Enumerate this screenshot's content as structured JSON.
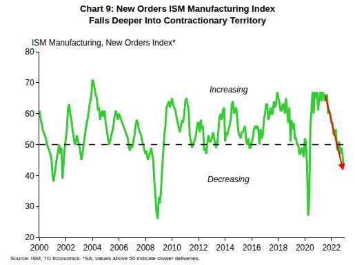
{
  "chart_data": {
    "type": "line",
    "title": "Chart 9: New Orders ISM Manufacturing Index\nFalls Deeper Into Contractionary Territory",
    "y_label": "ISM Manufacturing, New Orders Index*",
    "source": "Source: ISM, TD Economics. *SA; values above 50 indicate slower deliveries.",
    "annotations": [
      "Increasing",
      "Decreasing"
    ],
    "threshold": 50,
    "color": "#33cc33",
    "grid": false,
    "xlim": [
      2000,
      2023
    ],
    "ylim": [
      20,
      80
    ],
    "xticks": [
      2000,
      2002,
      2004,
      2006,
      2008,
      2010,
      2012,
      2014,
      2016,
      2018,
      2020,
      2022
    ],
    "yticks": [
      20,
      30,
      40,
      50,
      60,
      70,
      80
    ],
    "x": [
      2000,
      2000.08,
      2000.17,
      2000.25,
      2000.33,
      2000.42,
      2000.5,
      2000.58,
      2000.67,
      2000.75,
      2000.83,
      2000.92,
      2001,
      2001.08,
      2001.17,
      2001.25,
      2001.33,
      2001.42,
      2001.5,
      2001.58,
      2001.67,
      2001.75,
      2001.83,
      2001.92,
      2002,
      2002.08,
      2002.17,
      2002.25,
      2002.33,
      2002.42,
      2002.5,
      2002.58,
      2002.67,
      2002.75,
      2002.83,
      2002.92,
      2003,
      2003.08,
      2003.17,
      2003.25,
      2003.33,
      2003.42,
      2003.5,
      2003.58,
      2003.67,
      2003.75,
      2003.83,
      2003.92,
      2004,
      2004.08,
      2004.17,
      2004.25,
      2004.33,
      2004.42,
      2004.5,
      2004.58,
      2004.67,
      2004.75,
      2004.83,
      2004.92,
      2005,
      2005.08,
      2005.17,
      2005.25,
      2005.33,
      2005.42,
      2005.5,
      2005.58,
      2005.67,
      2005.75,
      2005.83,
      2005.92,
      2006,
      2006.08,
      2006.17,
      2006.25,
      2006.33,
      2006.42,
      2006.5,
      2006.58,
      2006.67,
      2006.75,
      2006.83,
      2006.92,
      2007,
      2007.08,
      2007.17,
      2007.25,
      2007.33,
      2007.42,
      2007.5,
      2007.58,
      2007.67,
      2007.75,
      2007.83,
      2007.92,
      2008,
      2008.08,
      2008.17,
      2008.25,
      2008.33,
      2008.42,
      2008.5,
      2008.58,
      2008.67,
      2008.75,
      2008.83,
      2008.92,
      2009,
      2009.08,
      2009.17,
      2009.25,
      2009.33,
      2009.42,
      2009.5,
      2009.58,
      2009.67,
      2009.75,
      2009.83,
      2009.92,
      2010,
      2010.08,
      2010.17,
      2010.25,
      2010.33,
      2010.42,
      2010.5,
      2010.58,
      2010.67,
      2010.75,
      2010.83,
      2010.92,
      2011,
      2011.08,
      2011.17,
      2011.25,
      2011.33,
      2011.42,
      2011.5,
      2011.58,
      2011.67,
      2011.75,
      2011.83,
      2011.92,
      2012,
      2012.08,
      2012.17,
      2012.25,
      2012.33,
      2012.42,
      2012.5,
      2012.58,
      2012.67,
      2012.75,
      2012.83,
      2012.92,
      2013,
      2013.08,
      2013.17,
      2013.25,
      2013.33,
      2013.42,
      2013.5,
      2013.58,
      2013.67,
      2013.75,
      2013.83,
      2013.92,
      2014,
      2014.08,
      2014.17,
      2014.25,
      2014.33,
      2014.42,
      2014.5,
      2014.58,
      2014.67,
      2014.75,
      2014.83,
      2014.92,
      2015,
      2015.08,
      2015.17,
      2015.25,
      2015.33,
      2015.42,
      2015.5,
      2015.58,
      2015.67,
      2015.75,
      2015.83,
      2015.92,
      2016,
      2016.08,
      2016.17,
      2016.25,
      2016.33,
      2016.42,
      2016.5,
      2016.58,
      2016.67,
      2016.75,
      2016.83,
      2016.92,
      2017,
      2017.08,
      2017.17,
      2017.25,
      2017.33,
      2017.42,
      2017.5,
      2017.58,
      2017.67,
      2017.75,
      2017.83,
      2017.92,
      2018,
      2018.08,
      2018.17,
      2018.25,
      2018.33,
      2018.42,
      2018.5,
      2018.58,
      2018.67,
      2018.75,
      2018.83,
      2018.92,
      2019,
      2019.08,
      2019.17,
      2019.25,
      2019.33,
      2019.42,
      2019.5,
      2019.58,
      2019.67,
      2019.75,
      2019.83,
      2019.92,
      2020,
      2020.08,
      2020.17,
      2020.25,
      2020.33,
      2020.42,
      2020.5,
      2020.58,
      2020.67,
      2020.75,
      2020.83,
      2020.92,
      2021,
      2021.08,
      2021.17,
      2021.25,
      2021.33,
      2021.42,
      2021.5,
      2021.58,
      2021.67,
      2021.75,
      2021.83,
      2021.92,
      2022,
      2022.08,
      2022.17,
      2022.25,
      2022.33,
      2022.42,
      2022.5,
      2022.58,
      2022.67,
      2022.75,
      2022.83,
      2022.92
    ],
    "values": [
      61,
      59,
      57,
      55,
      54,
      53,
      52,
      50,
      49,
      48,
      47,
      45,
      40,
      38,
      41,
      44,
      46,
      48,
      50,
      47,
      49,
      39,
      45,
      49,
      52,
      55,
      62,
      63,
      60,
      58,
      55,
      52,
      50,
      51,
      53,
      51,
      50,
      48,
      45,
      47,
      50,
      52,
      55,
      57,
      59,
      62,
      64,
      66,
      71,
      70,
      68,
      66,
      65,
      61,
      62,
      58,
      60,
      61,
      59,
      61,
      57,
      55,
      52,
      50,
      51,
      53,
      55,
      56,
      59,
      61,
      60,
      58,
      60,
      59,
      58,
      57,
      56,
      55,
      54,
      53,
      52,
      49,
      48,
      50,
      49,
      51,
      53,
      56,
      58,
      57,
      55,
      54,
      53,
      51,
      50,
      48,
      47,
      48,
      45,
      46,
      47,
      49,
      47,
      45,
      38,
      32,
      28,
      26,
      33,
      31,
      35,
      42,
      48,
      53,
      56,
      62,
      63,
      64,
      62,
      64,
      65,
      63,
      62,
      61,
      59,
      57,
      55,
      54,
      56,
      58,
      57,
      60,
      64,
      65,
      63,
      61,
      53,
      51,
      49,
      50,
      51,
      52,
      54,
      57,
      57,
      54,
      58,
      55,
      56,
      48,
      49,
      47,
      51,
      53,
      51,
      51,
      52,
      54,
      52,
      50,
      49,
      51,
      55,
      59,
      60,
      58,
      61,
      62,
      51,
      54,
      53,
      55,
      56,
      58,
      63,
      64,
      60,
      61,
      62,
      58,
      54,
      53,
      52,
      54,
      54,
      55,
      56,
      51,
      50,
      52,
      49,
      49,
      51,
      52,
      55,
      56,
      55,
      56,
      55,
      50,
      55,
      52,
      53,
      58,
      60,
      63,
      63,
      58,
      59,
      62,
      60,
      60,
      64,
      62,
      63,
      67,
      65,
      64,
      61,
      61,
      63,
      63,
      60,
      65,
      61,
      57,
      62,
      51,
      58,
      55,
      57,
      52,
      52,
      50,
      50,
      47,
      47,
      49,
      48,
      46,
      52,
      51,
      43,
      27,
      32,
      56,
      61,
      67,
      60,
      67,
      65,
      67,
      61,
      65,
      67,
      64,
      67,
      66,
      64,
      66,
      66,
      60,
      61,
      60,
      57,
      57,
      53,
      54,
      55,
      49,
      48,
      51,
      47,
      49,
      47,
      43
    ]
  }
}
